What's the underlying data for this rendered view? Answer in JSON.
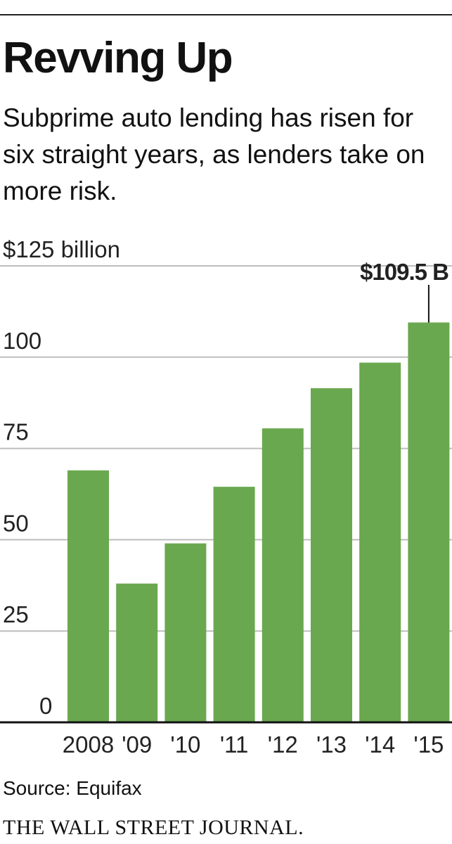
{
  "header": {
    "title": "Revving Up",
    "subtitle": "Subprime auto lending has risen for six straight years, as lenders take on more risk."
  },
  "chart_data": {
    "type": "bar",
    "title": "Revving Up",
    "ylabel": "$125 billion",
    "xlabel": "",
    "categories": [
      "2008",
      "'09",
      "'10",
      "'11",
      "'12",
      "'13",
      "'14",
      "'15"
    ],
    "values": [
      69,
      38,
      49,
      64.5,
      80.5,
      91.5,
      98.5,
      109.5
    ],
    "ylim": [
      0,
      125
    ],
    "yticks": [
      0,
      25,
      50,
      75,
      100,
      125
    ],
    "ytick_labels": [
      "0",
      "25",
      "50",
      "75",
      "100",
      "$125 billion"
    ],
    "annotation": {
      "category": "'15",
      "text": "$109.5 B"
    },
    "grid": true,
    "bar_color": "#6aa84f",
    "grid_color": "#bdbdbd"
  },
  "footer": {
    "source": "Source: Equifax",
    "brand": "THE WALL STREET JOURNAL."
  }
}
